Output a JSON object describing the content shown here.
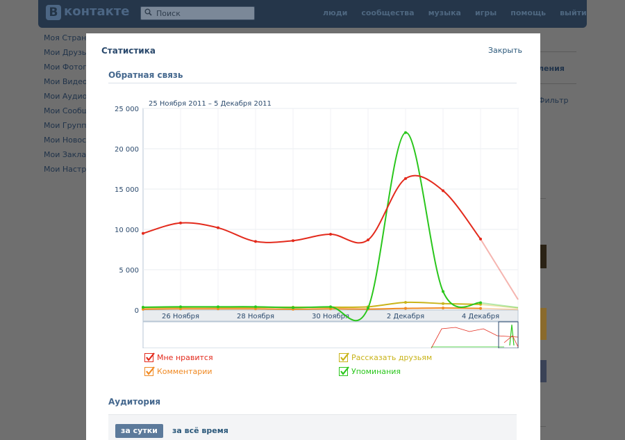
{
  "header": {
    "logo_letter": "В",
    "logo_text": "контакте",
    "search_placeholder": "Поиск",
    "nav": [
      "люди",
      "сообщества",
      "музыка",
      "игры",
      "помощь",
      "выйти"
    ]
  },
  "leftnav": [
    "Моя Страни",
    "Мои Друзья",
    "Мои Фотогр",
    "Мои Видеоз",
    "Мои Аудиоз",
    "Мои Сообщ",
    "Мои Группы",
    "Мои Новост",
    "Мои Заклад",
    "Мои Настро"
  ],
  "right_panel": {
    "title": "ления",
    "filter": "Фильтр"
  },
  "modal": {
    "title": "Статистика",
    "close": "Закрыть",
    "feedback_title": "Обратная связь",
    "date_range": "25 Ноября 2011 – 5 Декабря 2011",
    "audience_title": "Аудитория",
    "tab_day": "за сутки",
    "tab_all": "за всё время"
  },
  "colors": {
    "likes": "#e32a1c",
    "comments": "#f08a24",
    "share": "#c9b41a",
    "mentions": "#2ac61c",
    "accent": "#45688e"
  },
  "chart_data": {
    "type": "line",
    "ylim": [
      0,
      25000
    ],
    "yticks": [
      "0",
      "5 000",
      "10 000",
      "15 000",
      "20 000",
      "25 000"
    ],
    "xtick_labels": [
      "26 Ноября",
      "28 Ноября",
      "30 Ноября",
      "2 Декабря",
      "4 Декабря"
    ],
    "x": [
      "25.11",
      "26.11",
      "27.11",
      "28.11",
      "29.11",
      "30.11",
      "01.12",
      "02.12",
      "03.12",
      "04.12",
      "05.12"
    ],
    "series": [
      {
        "name": "Мне нравится",
        "color": "#e32a1c",
        "values": [
          9500,
          10800,
          10200,
          8500,
          8600,
          9400,
          8700,
          16300,
          14800,
          8800,
          1300
        ]
      },
      {
        "name": "Комментарии",
        "color": "#f08a24",
        "values": [
          100,
          150,
          150,
          150,
          100,
          150,
          120,
          200,
          250,
          200,
          60
        ]
      },
      {
        "name": "Рассказать друзьям",
        "color": "#c9b41a",
        "values": [
          300,
          350,
          350,
          350,
          350,
          350,
          400,
          950,
          800,
          700,
          250
        ]
      },
      {
        "name": "Упоминания",
        "color": "#2ac61c",
        "values": [
          350,
          400,
          400,
          400,
          300,
          400,
          250,
          22000,
          2300,
          900,
          300
        ]
      }
    ]
  }
}
